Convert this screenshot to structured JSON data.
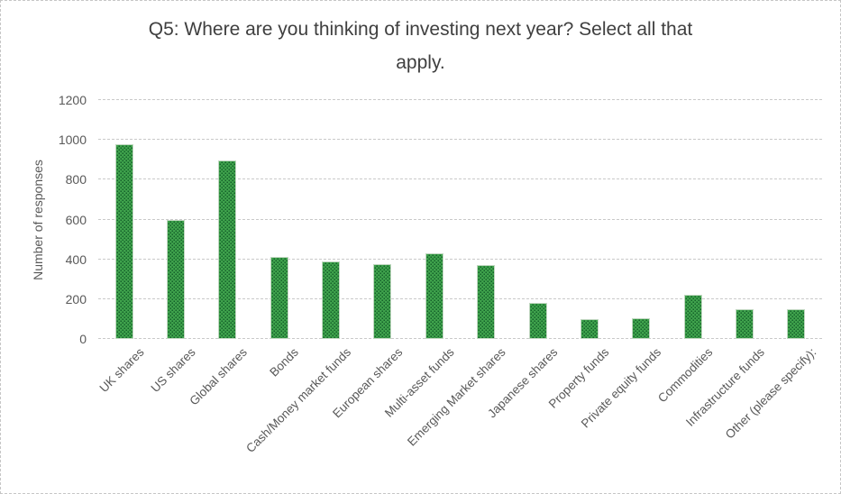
{
  "chart_data": {
    "type": "bar",
    "title": "Q5: Where are you thinking of investing next year? Select all that apply.",
    "xlabel": "",
    "ylabel": "Number of responses",
    "ylim": [
      0,
      1200
    ],
    "yticks": [
      0,
      200,
      400,
      600,
      800,
      1000,
      1200
    ],
    "grid": true,
    "legend": false,
    "categories": [
      "UK shares",
      "US shares",
      "Global shares",
      "Bonds",
      "Cash/Money market funds",
      "European shares",
      "Multi-asset funds",
      "Emerging Market shares",
      "Japanese shares",
      "Property funds",
      "Private equity funds",
      "Commodities",
      "Infrastructure funds",
      "Other (please specify):"
    ],
    "values": [
      980,
      600,
      895,
      410,
      390,
      375,
      430,
      370,
      180,
      100,
      105,
      220,
      150,
      150
    ]
  },
  "colors": {
    "bar_base": "#14612a",
    "bar_dot": "#3fa24c",
    "bar_border": "#c2d8c2",
    "gridline": "#c9c9c9",
    "axis_text": "#595959",
    "title_text": "#3f3f3f",
    "background": "#ffffff"
  }
}
